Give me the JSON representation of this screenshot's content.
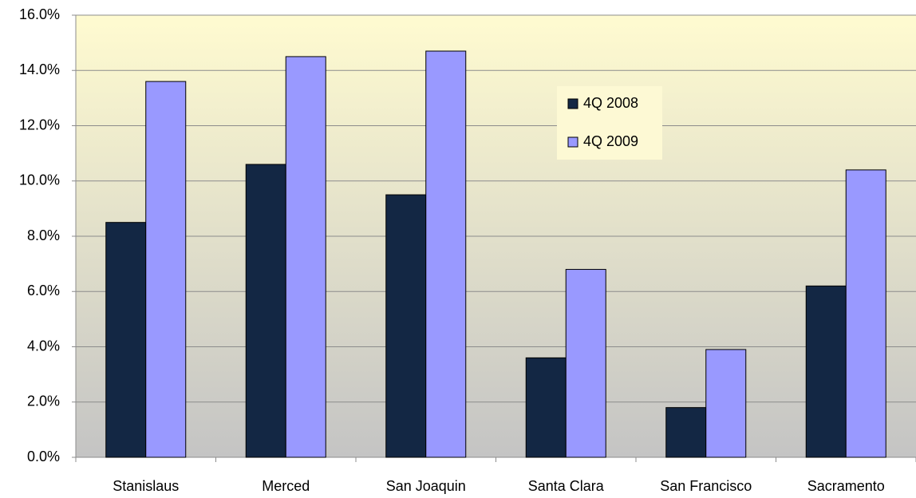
{
  "chart_data": {
    "type": "bar",
    "categories": [
      "Stanislaus",
      "Merced",
      "San Joaquin",
      "Santa Clara",
      "San Francisco",
      "Sacramento"
    ],
    "series": [
      {
        "name": "4Q 2008",
        "color": "#132744",
        "values": [
          8.5,
          10.6,
          9.5,
          3.6,
          1.8,
          6.2
        ]
      },
      {
        "name": "4Q 2009",
        "color": "#9999ff",
        "values": [
          13.6,
          14.5,
          14.7,
          6.8,
          3.9,
          10.4
        ]
      }
    ],
    "ylim": [
      0,
      16
    ],
    "yticks": [
      {
        "value": 0,
        "label": "0.0%"
      },
      {
        "value": 2,
        "label": "2.0%"
      },
      {
        "value": 4,
        "label": "4.0%"
      },
      {
        "value": 6,
        "label": "6.0%"
      },
      {
        "value": 8,
        "label": "8.0%"
      },
      {
        "value": 10,
        "label": "10.0%"
      },
      {
        "value": 12,
        "label": "12.0%"
      },
      {
        "value": 14,
        "label": "14.0%"
      },
      {
        "value": 16,
        "label": "16.0%"
      }
    ],
    "grid": true
  }
}
